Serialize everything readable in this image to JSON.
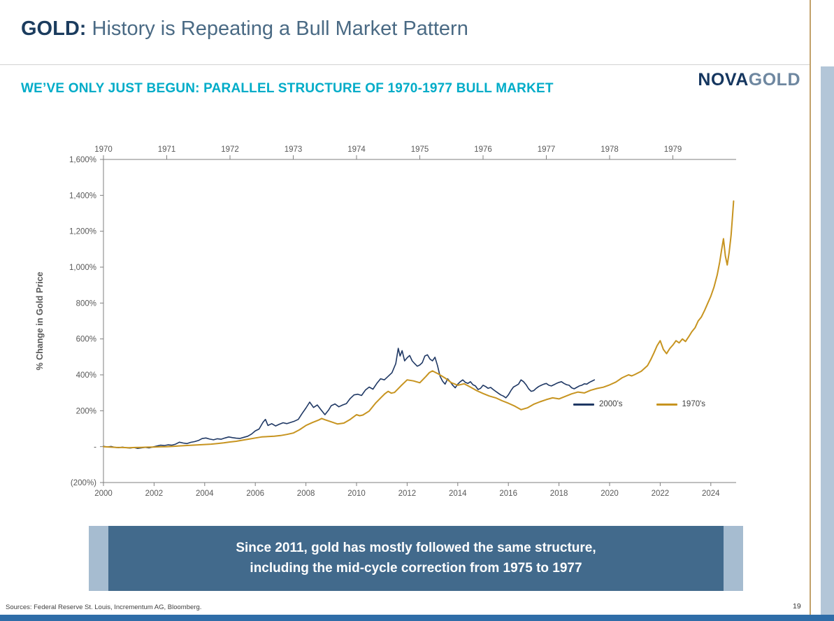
{
  "header": {
    "title_bold": "GOLD:",
    "title_rest": " History is Repeating a Bull Market Pattern"
  },
  "logo": {
    "part1": "NOVA",
    "part2": "GOLD"
  },
  "subtitle": "WE’VE ONLY JUST BEGUN: PARALLEL STRUCTURE OF 1970-1977 BULL MARKET",
  "banner": {
    "line1": "Since 2011, gold has mostly followed the same structure,",
    "line2": "including the mid-cycle correction from 1975 to 1977"
  },
  "footer": {
    "sources": "Sources: Federal Reserve St. Louis, Incrementum AG, Bloomberg.",
    "page_number": "19"
  },
  "colors": {
    "title_navy": "#1b3c5e",
    "title_slate": "#4a6a84",
    "subtitle_teal": "#00acc8",
    "series_2000s": "#1f3864",
    "series_1970s": "#c79420",
    "banner_dark": "#426a8c",
    "banner_light": "#a6bcd0",
    "bottom_bar": "#2f6da8",
    "right_accent_tan": "#c2a26b",
    "right_accent_blue": "#b3c6d8",
    "axis_gray": "#7f7f7f"
  },
  "chart_data": {
    "type": "line",
    "title": "",
    "xlabel": "",
    "ylabel": "% Change in Gold Price",
    "grid": false,
    "legend_position": "inside-right",
    "ylim": [
      -200,
      1600
    ],
    "y_ticks": [
      {
        "v": 1600,
        "label": "1,600%"
      },
      {
        "v": 1400,
        "label": "1,400%"
      },
      {
        "v": 1200,
        "label": "1,200%"
      },
      {
        "v": 1000,
        "label": "1,000%"
      },
      {
        "v": 800,
        "label": "800%"
      },
      {
        "v": 600,
        "label": "600%"
      },
      {
        "v": 400,
        "label": "400%"
      },
      {
        "v": 200,
        "label": "200%"
      },
      {
        "v": 0,
        "label": "-"
      },
      {
        "v": -200,
        "label": "(200%)"
      }
    ],
    "xlim_bottom": [
      2000,
      2025
    ],
    "x_bottom_ticks": [
      2000,
      2002,
      2004,
      2006,
      2008,
      2010,
      2012,
      2014,
      2016,
      2018,
      2020,
      2022,
      2024
    ],
    "xlim_top": [
      1970,
      1980
    ],
    "x_top_ticks": [
      1970,
      1971,
      1972,
      1973,
      1974,
      1975,
      1976,
      1977,
      1978,
      1979
    ],
    "series": [
      {
        "name": "2000's",
        "axis": "bottom",
        "color": "#1f3864",
        "stroke_width": 1.6,
        "points": [
          [
            2000.0,
            2
          ],
          [
            2000.15,
            -2
          ],
          [
            2000.3,
            1
          ],
          [
            2000.45,
            -4
          ],
          [
            2000.6,
            -6
          ],
          [
            2000.75,
            -3
          ],
          [
            2000.9,
            -6
          ],
          [
            2001.05,
            -8
          ],
          [
            2001.2,
            -5
          ],
          [
            2001.35,
            -10
          ],
          [
            2001.5,
            -7
          ],
          [
            2001.65,
            -4
          ],
          [
            2001.8,
            -7
          ],
          [
            2001.95,
            -2
          ],
          [
            2002.1,
            3
          ],
          [
            2002.25,
            8
          ],
          [
            2002.4,
            6
          ],
          [
            2002.55,
            10
          ],
          [
            2002.7,
            8
          ],
          [
            2002.85,
            14
          ],
          [
            2003.0,
            25
          ],
          [
            2003.15,
            20
          ],
          [
            2003.3,
            17
          ],
          [
            2003.45,
            24
          ],
          [
            2003.6,
            28
          ],
          [
            2003.75,
            34
          ],
          [
            2003.9,
            45
          ],
          [
            2004.05,
            48
          ],
          [
            2004.2,
            42
          ],
          [
            2004.35,
            38
          ],
          [
            2004.5,
            44
          ],
          [
            2004.65,
            41
          ],
          [
            2004.8,
            48
          ],
          [
            2004.95,
            54
          ],
          [
            2005.1,
            50
          ],
          [
            2005.25,
            47
          ],
          [
            2005.4,
            46
          ],
          [
            2005.55,
            52
          ],
          [
            2005.7,
            58
          ],
          [
            2005.85,
            70
          ],
          [
            2006.0,
            88
          ],
          [
            2006.15,
            98
          ],
          [
            2006.3,
            135
          ],
          [
            2006.4,
            152
          ],
          [
            2006.5,
            118
          ],
          [
            2006.65,
            128
          ],
          [
            2006.8,
            115
          ],
          [
            2006.95,
            125
          ],
          [
            2007.1,
            133
          ],
          [
            2007.25,
            128
          ],
          [
            2007.4,
            135
          ],
          [
            2007.55,
            142
          ],
          [
            2007.7,
            152
          ],
          [
            2007.85,
            185
          ],
          [
            2008.0,
            215
          ],
          [
            2008.15,
            248
          ],
          [
            2008.3,
            218
          ],
          [
            2008.45,
            232
          ],
          [
            2008.6,
            205
          ],
          [
            2008.75,
            178
          ],
          [
            2008.9,
            205
          ],
          [
            2009.0,
            228
          ],
          [
            2009.15,
            238
          ],
          [
            2009.3,
            222
          ],
          [
            2009.45,
            232
          ],
          [
            2009.6,
            240
          ],
          [
            2009.75,
            268
          ],
          [
            2009.9,
            288
          ],
          [
            2010.05,
            292
          ],
          [
            2010.2,
            285
          ],
          [
            2010.35,
            315
          ],
          [
            2010.5,
            332
          ],
          [
            2010.65,
            320
          ],
          [
            2010.8,
            352
          ],
          [
            2010.95,
            378
          ],
          [
            2011.1,
            372
          ],
          [
            2011.25,
            392
          ],
          [
            2011.4,
            412
          ],
          [
            2011.55,
            462
          ],
          [
            2011.65,
            548
          ],
          [
            2011.72,
            505
          ],
          [
            2011.8,
            535
          ],
          [
            2011.9,
            478
          ],
          [
            2012.0,
            495
          ],
          [
            2012.1,
            508
          ],
          [
            2012.2,
            478
          ],
          [
            2012.3,
            462
          ],
          [
            2012.4,
            448
          ],
          [
            2012.5,
            455
          ],
          [
            2012.6,
            468
          ],
          [
            2012.7,
            505
          ],
          [
            2012.8,
            512
          ],
          [
            2012.9,
            488
          ],
          [
            2013.0,
            478
          ],
          [
            2013.1,
            498
          ],
          [
            2013.2,
            452
          ],
          [
            2013.3,
            392
          ],
          [
            2013.4,
            365
          ],
          [
            2013.5,
            348
          ],
          [
            2013.6,
            378
          ],
          [
            2013.7,
            362
          ],
          [
            2013.8,
            342
          ],
          [
            2013.9,
            328
          ],
          [
            2014.0,
            348
          ],
          [
            2014.1,
            362
          ],
          [
            2014.2,
            372
          ],
          [
            2014.3,
            358
          ],
          [
            2014.4,
            352
          ],
          [
            2014.5,
            362
          ],
          [
            2014.6,
            345
          ],
          [
            2014.7,
            338
          ],
          [
            2014.8,
            318
          ],
          [
            2014.9,
            325
          ],
          [
            2015.0,
            342
          ],
          [
            2015.1,
            335
          ],
          [
            2015.2,
            325
          ],
          [
            2015.3,
            330
          ],
          [
            2015.4,
            318
          ],
          [
            2015.5,
            308
          ],
          [
            2015.6,
            298
          ],
          [
            2015.7,
            288
          ],
          [
            2015.8,
            282
          ],
          [
            2015.9,
            272
          ],
          [
            2016.0,
            288
          ],
          [
            2016.1,
            312
          ],
          [
            2016.2,
            332
          ],
          [
            2016.3,
            340
          ],
          [
            2016.4,
            348
          ],
          [
            2016.5,
            372
          ],
          [
            2016.6,
            362
          ],
          [
            2016.7,
            345
          ],
          [
            2016.8,
            322
          ],
          [
            2016.9,
            308
          ],
          [
            2017.0,
            312
          ],
          [
            2017.1,
            325
          ],
          [
            2017.2,
            335
          ],
          [
            2017.3,
            342
          ],
          [
            2017.4,
            348
          ],
          [
            2017.5,
            352
          ],
          [
            2017.6,
            342
          ],
          [
            2017.7,
            338
          ],
          [
            2017.8,
            345
          ],
          [
            2017.9,
            352
          ],
          [
            2018.0,
            358
          ],
          [
            2018.1,
            362
          ],
          [
            2018.2,
            352
          ],
          [
            2018.3,
            345
          ],
          [
            2018.4,
            342
          ],
          [
            2018.5,
            328
          ],
          [
            2018.6,
            322
          ],
          [
            2018.7,
            330
          ],
          [
            2018.8,
            338
          ],
          [
            2018.9,
            342
          ],
          [
            2019.0,
            350
          ],
          [
            2019.1,
            348
          ],
          [
            2019.2,
            358
          ],
          [
            2019.3,
            365
          ],
          [
            2019.4,
            372
          ]
        ]
      },
      {
        "name": "1970's",
        "axis": "top",
        "color": "#c79420",
        "stroke_width": 2,
        "points": [
          [
            1970.0,
            0
          ],
          [
            1970.1,
            -2
          ],
          [
            1970.2,
            -4
          ],
          [
            1970.3,
            -5
          ],
          [
            1970.4,
            -6
          ],
          [
            1970.5,
            -5
          ],
          [
            1970.6,
            -4
          ],
          [
            1970.7,
            -3
          ],
          [
            1970.8,
            -2
          ],
          [
            1970.9,
            -1
          ],
          [
            1971.0,
            0
          ],
          [
            1971.1,
            2
          ],
          [
            1971.2,
            4
          ],
          [
            1971.3,
            6
          ],
          [
            1971.4,
            8
          ],
          [
            1971.5,
            10
          ],
          [
            1971.6,
            12
          ],
          [
            1971.7,
            14
          ],
          [
            1971.8,
            17
          ],
          [
            1971.9,
            21
          ],
          [
            1972.0,
            26
          ],
          [
            1972.1,
            30
          ],
          [
            1972.2,
            36
          ],
          [
            1972.3,
            42
          ],
          [
            1972.4,
            48
          ],
          [
            1972.5,
            54
          ],
          [
            1972.6,
            56
          ],
          [
            1972.7,
            58
          ],
          [
            1972.8,
            62
          ],
          [
            1972.9,
            68
          ],
          [
            1973.0,
            76
          ],
          [
            1973.1,
            94
          ],
          [
            1973.2,
            118
          ],
          [
            1973.3,
            134
          ],
          [
            1973.4,
            148
          ],
          [
            1973.45,
            157
          ],
          [
            1973.5,
            150
          ],
          [
            1973.6,
            138
          ],
          [
            1973.7,
            126
          ],
          [
            1973.8,
            131
          ],
          [
            1973.9,
            152
          ],
          [
            1974.0,
            178
          ],
          [
            1974.05,
            172
          ],
          [
            1974.1,
            176
          ],
          [
            1974.2,
            198
          ],
          [
            1974.3,
            242
          ],
          [
            1974.4,
            278
          ],
          [
            1974.45,
            295
          ],
          [
            1974.5,
            308
          ],
          [
            1974.55,
            298
          ],
          [
            1974.6,
            302
          ],
          [
            1974.7,
            338
          ],
          [
            1974.8,
            372
          ],
          [
            1974.9,
            366
          ],
          [
            1975.0,
            356
          ],
          [
            1975.1,
            392
          ],
          [
            1975.15,
            412
          ],
          [
            1975.2,
            422
          ],
          [
            1975.3,
            404
          ],
          [
            1975.4,
            382
          ],
          [
            1975.5,
            356
          ],
          [
            1975.6,
            342
          ],
          [
            1975.7,
            350
          ],
          [
            1975.8,
            332
          ],
          [
            1975.9,
            312
          ],
          [
            1976.0,
            296
          ],
          [
            1976.1,
            282
          ],
          [
            1976.2,
            272
          ],
          [
            1976.3,
            256
          ],
          [
            1976.4,
            242
          ],
          [
            1976.5,
            226
          ],
          [
            1976.6,
            206
          ],
          [
            1976.7,
            216
          ],
          [
            1976.8,
            236
          ],
          [
            1976.9,
            250
          ],
          [
            1977.0,
            262
          ],
          [
            1977.1,
            272
          ],
          [
            1977.2,
            266
          ],
          [
            1977.3,
            280
          ],
          [
            1977.4,
            294
          ],
          [
            1977.5,
            304
          ],
          [
            1977.6,
            299
          ],
          [
            1977.7,
            314
          ],
          [
            1977.8,
            324
          ],
          [
            1977.9,
            331
          ],
          [
            1978.0,
            344
          ],
          [
            1978.1,
            360
          ],
          [
            1978.2,
            384
          ],
          [
            1978.3,
            400
          ],
          [
            1978.35,
            394
          ],
          [
            1978.4,
            402
          ],
          [
            1978.5,
            420
          ],
          [
            1978.6,
            452
          ],
          [
            1978.65,
            484
          ],
          [
            1978.7,
            522
          ],
          [
            1978.75,
            562
          ],
          [
            1978.8,
            590
          ],
          [
            1978.85,
            542
          ],
          [
            1978.9,
            518
          ],
          [
            1978.95,
            546
          ],
          [
            1979.0,
            566
          ],
          [
            1979.05,
            590
          ],
          [
            1979.1,
            578
          ],
          [
            1979.15,
            600
          ],
          [
            1979.2,
            586
          ],
          [
            1979.25,
            612
          ],
          [
            1979.3,
            640
          ],
          [
            1979.35,
            662
          ],
          [
            1979.4,
            700
          ],
          [
            1979.45,
            722
          ],
          [
            1979.5,
            758
          ],
          [
            1979.55,
            798
          ],
          [
            1979.6,
            838
          ],
          [
            1979.65,
            888
          ],
          [
            1979.7,
            956
          ],
          [
            1979.74,
            1028
          ],
          [
            1979.77,
            1096
          ],
          [
            1979.8,
            1158
          ],
          [
            1979.83,
            1062
          ],
          [
            1979.86,
            1012
          ],
          [
            1979.89,
            1082
          ],
          [
            1979.92,
            1178
          ],
          [
            1979.94,
            1272
          ],
          [
            1979.96,
            1368
          ]
        ]
      }
    ]
  }
}
